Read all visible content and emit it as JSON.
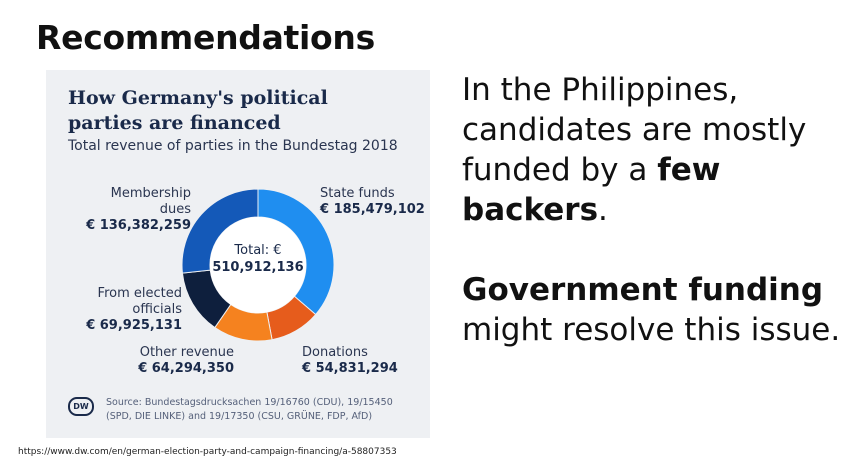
{
  "slide": {
    "title": "Recommendations",
    "url": "https://www.dw.com/en/german-election-party-and-campaign-financing/a-58807353"
  },
  "text": {
    "p1_a": "In the Philippines, candidates are mostly funded by a ",
    "p1_bold": "few backers",
    "p1_c": ".",
    "p2_bold": "Government funding",
    "p2_c": " might resolve this issue."
  },
  "chart_data": {
    "type": "pie",
    "title": "How Germany's political parties are financed",
    "subtitle": "Total revenue of parties in the Bundestag 2018",
    "total_label": "Total: €",
    "total_value": "510,912,136",
    "source": "Source: Bundestagsdrucksachen 19/16760 (CDU), 19/15450 (SPD, DIE LINKE) and 19/17350 (CSU, GRÜNE, FDP, AfD)",
    "logo": "DW",
    "slices": [
      {
        "label": "State funds",
        "display": "€ 185,479,102",
        "value": 185479102,
        "color": "#1f8ef0"
      },
      {
        "label": "Donations",
        "display": "€ 54,831,294",
        "value": 54831294,
        "color": "#e65c1c"
      },
      {
        "label": "Other revenue",
        "display": "€ 64,294,350",
        "value": 64294350,
        "color": "#f5821f"
      },
      {
        "label": "From elected officials",
        "display": "€ 69,925,131",
        "value": 69925131,
        "color": "#0e1f3d"
      },
      {
        "label": "Membership dues",
        "display": "€ 136,382,259",
        "value": 136382259,
        "color": "#1459b8"
      }
    ]
  }
}
